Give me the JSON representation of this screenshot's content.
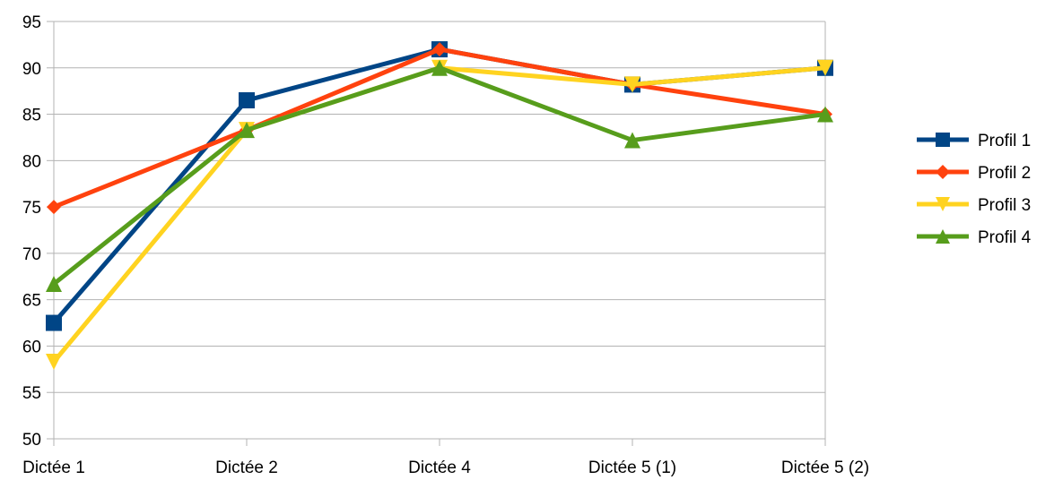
{
  "chart_data": {
    "type": "line",
    "categories": [
      "Dictée 1",
      "Dictée 2",
      "Dictée 4",
      "Dictée 5 (1)",
      "Dictée 5 (2)"
    ],
    "ylim": [
      50,
      95
    ],
    "yticks": [
      50,
      55,
      60,
      65,
      70,
      75,
      80,
      85,
      90,
      95
    ],
    "grid": true,
    "legend": "right",
    "series": [
      {
        "name": "Profil 1",
        "color": "#004586",
        "marker": "square",
        "values": [
          62.5,
          86.5,
          92,
          88.2,
          90
        ]
      },
      {
        "name": "Profil 2",
        "color": "#ff420e",
        "marker": "diamond",
        "values": [
          75,
          83.3,
          92,
          88.2,
          85
        ]
      },
      {
        "name": "Profil 3",
        "color": "#ffd320",
        "marker": "triangle-down",
        "values": [
          58.3,
          83.3,
          90,
          88.2,
          90
        ]
      },
      {
        "name": "Profil 4",
        "color": "#579d1c",
        "marker": "triangle-up",
        "values": [
          66.7,
          83.3,
          90,
          82.2,
          85
        ]
      }
    ]
  }
}
